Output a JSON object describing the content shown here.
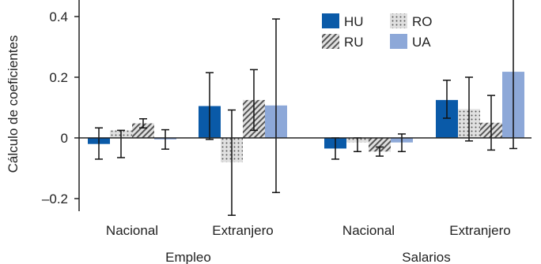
{
  "chart_data": {
    "type": "bar",
    "ylabel": "Cálculo de coeficientes",
    "ylim": [
      -0.28,
      0.47
    ],
    "yticks": [
      {
        "value": 0.4,
        "label": "0.4"
      },
      {
        "value": 0.2,
        "label": "0.2"
      },
      {
        "value": 0,
        "label": "0"
      },
      {
        "value": -0.2,
        "label": "–0.2"
      }
    ],
    "groups": [
      {
        "label": "Empleo",
        "categories": [
          "Nacional",
          "Extranjero"
        ]
      },
      {
        "label": "Salarios",
        "categories": [
          "Nacional",
          "Extranjero"
        ]
      }
    ],
    "categories": [
      "Nacional",
      "Extranjero",
      "Nacional",
      "Extranjero"
    ],
    "legend_position": "top-right",
    "grid": false,
    "series": [
      {
        "name": "HU",
        "color": "#0a5aa8",
        "pattern": "solid",
        "values": [
          -0.02,
          0.105,
          -0.035,
          0.125
        ],
        "err_low": [
          -0.07,
          -0.005,
          -0.07,
          0.065
        ],
        "err_high": [
          0.033,
          0.215,
          0.0,
          0.19
        ]
      },
      {
        "name": "RO",
        "color": "#d6d6d6",
        "pattern": "dots",
        "values": [
          0.025,
          -0.08,
          -0.015,
          0.095
        ],
        "err_low": [
          -0.065,
          -0.255,
          -0.045,
          -0.01
        ],
        "err_high": [
          0.025,
          0.092,
          0.0,
          0.2
        ]
      },
      {
        "name": "RU",
        "color": "#d6d6d6",
        "pattern": "diagonal",
        "values": [
          0.048,
          0.125,
          -0.045,
          0.05
        ],
        "err_low": [
          0.033,
          0.025,
          -0.06,
          -0.04
        ],
        "err_high": [
          0.063,
          0.225,
          -0.03,
          0.14
        ]
      },
      {
        "name": "UA",
        "color": "#8da8d8",
        "pattern": "solid",
        "values": [
          -0.005,
          0.107,
          -0.015,
          0.218
        ],
        "err_low": [
          -0.037,
          -0.18,
          -0.045,
          -0.035
        ],
        "err_high": [
          0.027,
          0.392,
          0.013,
          0.47
        ]
      }
    ]
  }
}
